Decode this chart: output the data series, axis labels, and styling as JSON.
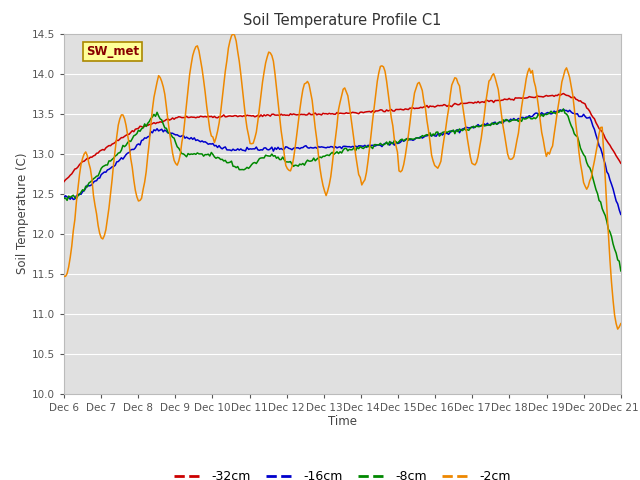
{
  "title": "Soil Temperature Profile C1",
  "xlabel": "Time",
  "ylabel": "Soil Temperature (C)",
  "ylim": [
    10.0,
    14.5
  ],
  "yticks": [
    10.0,
    10.5,
    11.0,
    11.5,
    12.0,
    12.5,
    13.0,
    13.5,
    14.0,
    14.5
  ],
  "xtick_labels": [
    "Dec 6",
    "Dec 7",
    "Dec 8",
    "Dec 9",
    "Dec 10",
    "Dec 11",
    "Dec 12",
    "Dec 13",
    "Dec 14",
    "Dec 15",
    "Dec 16",
    "Dec 17",
    "Dec 18",
    "Dec 19",
    "Dec 20",
    "Dec 21"
  ],
  "legend_label": "SW_met",
  "legend_box_color": "#ffff99",
  "legend_box_border": "#aa8800",
  "legend_text_color": "#880000",
  "colors": {
    "-32cm": "#cc0000",
    "-16cm": "#0000cc",
    "-8cm": "#008800",
    "-2cm": "#ee8800"
  },
  "background_color": "#ffffff",
  "plot_bg_color": "#e0e0e0",
  "grid_color": "#ffffff",
  "title_color": "#333333",
  "axis_label_color": "#444444"
}
